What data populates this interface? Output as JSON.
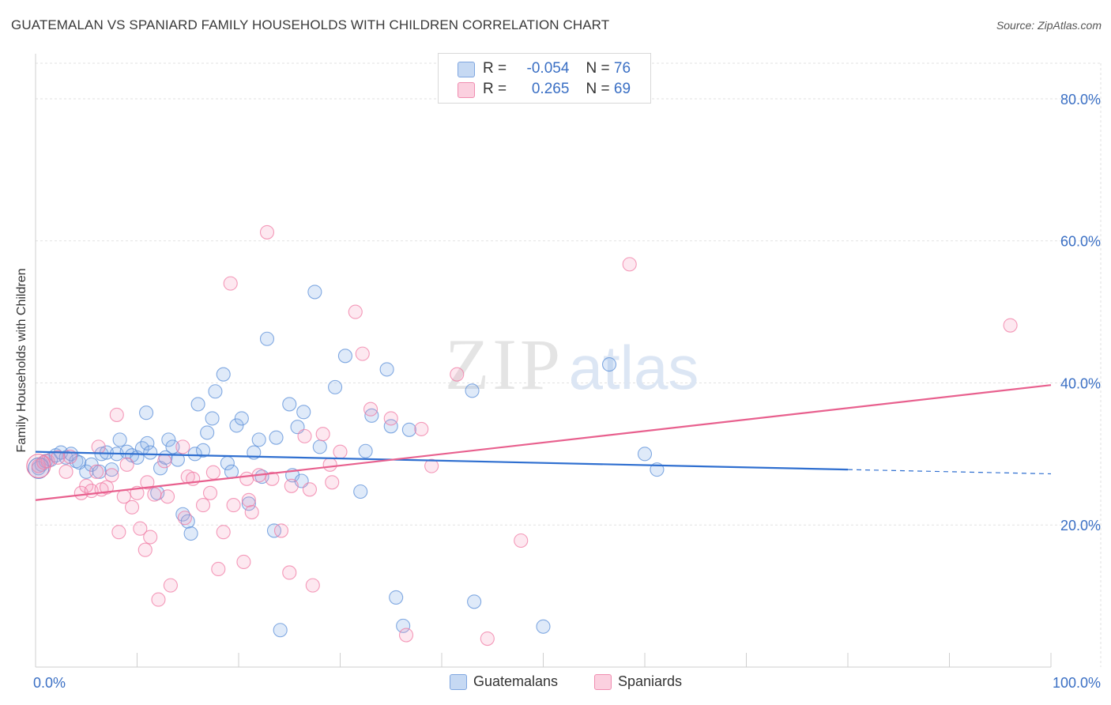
{
  "chart_data": {
    "type": "scatter",
    "title": "GUATEMALAN VS SPANIARD FAMILY HOUSEHOLDS WITH CHILDREN CORRELATION CHART",
    "source": "Source: ZipAtlas.com",
    "xlabel": "",
    "ylabel": "Family Households with Children",
    "xlim": [
      0,
      100
    ],
    "ylim": [
      0,
      85
    ],
    "x_tick_labels": [
      "0.0%",
      "100.0%"
    ],
    "y_ticks": [
      20,
      40,
      60,
      80
    ],
    "y_tick_labels": [
      "20.0%",
      "40.0%",
      "60.0%",
      "80.0%"
    ],
    "watermark": {
      "part1": "ZIP",
      "part2": "atlas"
    },
    "legend": {
      "r_label": "R =",
      "n_label": "N =",
      "entries": [
        {
          "r": "-0.054",
          "n": "76"
        },
        {
          "r": "0.265",
          "n": "69"
        }
      ]
    },
    "series": [
      {
        "name": "Guatemalans",
        "color": "#5b8fd8",
        "line_color": "#2f6fd0",
        "trend": {
          "x0": 0,
          "y0": 30.3,
          "x1": 80,
          "y1": 27.8,
          "dash_x1": 100,
          "dash_y1": 27.2
        },
        "points": [
          [
            0.3,
            28
          ],
          [
            0.6,
            28.5
          ],
          [
            1,
            29
          ],
          [
            1.5,
            29.2
          ],
          [
            2,
            29.8
          ],
          [
            2.5,
            30.2
          ],
          [
            3,
            29.5
          ],
          [
            3.5,
            30
          ],
          [
            4,
            29
          ],
          [
            4.3,
            28.8
          ],
          [
            5,
            27.5
          ],
          [
            5.5,
            28.5
          ],
          [
            6.3,
            27.5
          ],
          [
            6.5,
            30
          ],
          [
            7,
            30.2
          ],
          [
            7.5,
            27.8
          ],
          [
            8,
            30
          ],
          [
            8.3,
            32
          ],
          [
            9,
            30.3
          ],
          [
            9.5,
            29.8
          ],
          [
            10,
            29.5
          ],
          [
            10.5,
            30.8
          ],
          [
            11,
            31.5
          ],
          [
            10.9,
            35.8
          ],
          [
            11.3,
            30.2
          ],
          [
            12,
            24.5
          ],
          [
            12.3,
            28
          ],
          [
            12.8,
            29.5
          ],
          [
            13.1,
            32
          ],
          [
            13.5,
            31
          ],
          [
            14,
            29.2
          ],
          [
            14.5,
            21.5
          ],
          [
            15,
            20.5
          ],
          [
            15.3,
            18.8
          ],
          [
            15.7,
            30
          ],
          [
            16,
            37
          ],
          [
            16.5,
            30.5
          ],
          [
            16.9,
            33
          ],
          [
            17.4,
            35
          ],
          [
            17.7,
            38.8
          ],
          [
            18.5,
            41.2
          ],
          [
            18.9,
            28.7
          ],
          [
            19.3,
            27.5
          ],
          [
            19.8,
            34
          ],
          [
            20.3,
            35
          ],
          [
            21,
            23
          ],
          [
            21.5,
            30.2
          ],
          [
            22,
            32
          ],
          [
            22.3,
            26.8
          ],
          [
            22.8,
            46.2
          ],
          [
            23.5,
            19.2
          ],
          [
            23.7,
            32.3
          ],
          [
            24.1,
            5.2
          ],
          [
            25,
            37
          ],
          [
            25.3,
            27
          ],
          [
            25.8,
            33.8
          ],
          [
            26.2,
            26.2
          ],
          [
            26.4,
            35.9
          ],
          [
            27.5,
            52.8
          ],
          [
            28,
            31
          ],
          [
            29.5,
            39.4
          ],
          [
            30.5,
            43.8
          ],
          [
            32,
            24.7
          ],
          [
            32.5,
            30.4
          ],
          [
            33.1,
            35.4
          ],
          [
            34.6,
            41.9
          ],
          [
            35,
            33.9
          ],
          [
            35.5,
            9.8
          ],
          [
            36.2,
            5.8
          ],
          [
            36.8,
            33.4
          ],
          [
            43,
            38.9
          ],
          [
            43.2,
            9.2
          ],
          [
            50,
            5.7
          ],
          [
            56.5,
            42.6
          ],
          [
            60,
            30
          ],
          [
            61.2,
            27.8
          ]
        ]
      },
      {
        "name": "Spaniards",
        "color": "#f07aa3",
        "line_color": "#e8608e",
        "trend": {
          "x0": 0,
          "y0": 23.5,
          "x1": 100,
          "y1": 39.7
        },
        "points": [
          [
            0.3,
            28.3
          ],
          [
            0.8,
            28.8
          ],
          [
            1.2,
            29
          ],
          [
            2.2,
            29.5
          ],
          [
            3,
            27.5
          ],
          [
            3.4,
            29.6
          ],
          [
            4.5,
            24.5
          ],
          [
            5,
            25.5
          ],
          [
            5.5,
            24.8
          ],
          [
            6,
            27.5
          ],
          [
            6.5,
            25
          ],
          [
            7,
            25.3
          ],
          [
            7.5,
            27
          ],
          [
            8,
            35.5
          ],
          [
            8.2,
            19
          ],
          [
            8.7,
            24
          ],
          [
            9,
            28.5
          ],
          [
            9.5,
            22.5
          ],
          [
            10,
            24.5
          ],
          [
            10.3,
            19.5
          ],
          [
            10.8,
            16.5
          ],
          [
            11.3,
            18.3
          ],
          [
            11.7,
            24.3
          ],
          [
            12.1,
            9.5
          ],
          [
            12.7,
            29
          ],
          [
            13,
            24
          ],
          [
            13.3,
            11.5
          ],
          [
            14.5,
            31
          ],
          [
            14.7,
            21
          ],
          [
            15,
            26.8
          ],
          [
            15.5,
            26.5
          ],
          [
            16.5,
            22.8
          ],
          [
            17.2,
            24.5
          ],
          [
            18,
            13.8
          ],
          [
            18.5,
            19
          ],
          [
            19.2,
            54
          ],
          [
            19.5,
            22.8
          ],
          [
            20.5,
            14.8
          ],
          [
            21,
            23.5
          ],
          [
            21.3,
            21.8
          ],
          [
            22,
            27
          ],
          [
            22.8,
            61.2
          ],
          [
            23.3,
            26.5
          ],
          [
            24.2,
            19.2
          ],
          [
            25,
            13.3
          ],
          [
            26.5,
            32.5
          ],
          [
            27.3,
            11.5
          ],
          [
            28.3,
            32.8
          ],
          [
            29,
            28.5
          ],
          [
            30,
            30.3
          ],
          [
            31.5,
            50
          ],
          [
            32.2,
            44.1
          ],
          [
            33,
            36.3
          ],
          [
            35,
            35
          ],
          [
            36.5,
            4.5
          ],
          [
            38,
            33.5
          ],
          [
            39,
            28.3
          ],
          [
            41.5,
            41.2
          ],
          [
            44.5,
            4
          ],
          [
            47.8,
            17.8
          ],
          [
            58.5,
            56.7
          ],
          [
            96,
            48.1
          ],
          [
            25.2,
            25.5
          ],
          [
            27,
            25
          ],
          [
            11,
            26
          ],
          [
            6.2,
            31
          ],
          [
            29.2,
            26
          ],
          [
            20.8,
            26.5
          ],
          [
            17.5,
            27.4
          ]
        ]
      }
    ]
  }
}
